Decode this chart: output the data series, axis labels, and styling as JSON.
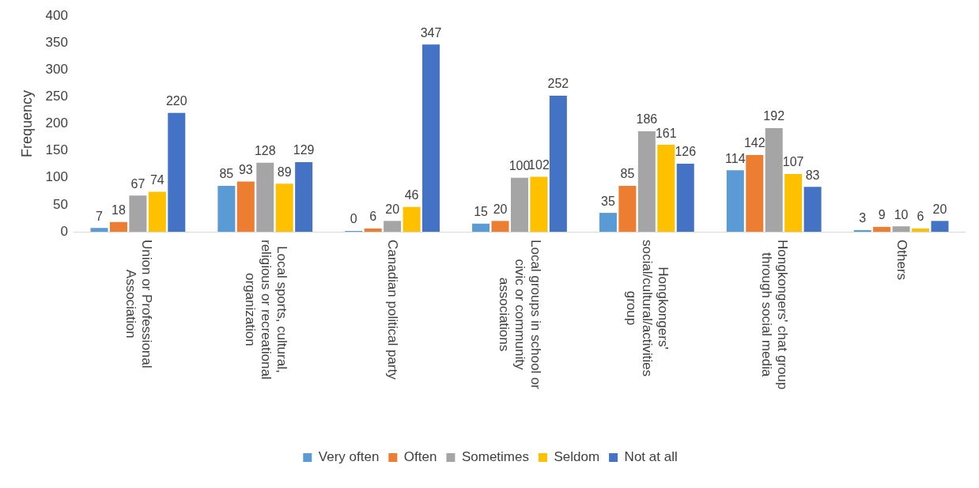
{
  "chart_data": {
    "type": "bar",
    "ylabel": "Frequency",
    "categories": [
      "Union or Professional Association",
      "Local sports, cultural, religious or recreational organization",
      "Canadian political party",
      "Local groups in school or civic or community associations",
      "Hongkongers' social/cultural/activities group",
      "Hongkongers' chat group through social media",
      "Others"
    ],
    "series": [
      {
        "name": "Very often",
        "color": "#5b9bd5",
        "values": [
          7,
          85,
          0,
          15,
          35,
          114,
          3
        ]
      },
      {
        "name": "Often",
        "color": "#ed7d31",
        "values": [
          18,
          93,
          6,
          20,
          85,
          142,
          9
        ]
      },
      {
        "name": "Sometimes",
        "color": "#a5a5a5",
        "values": [
          67,
          128,
          20,
          100,
          186,
          192,
          10
        ]
      },
      {
        "name": "Seldom",
        "color": "#ffc000",
        "values": [
          74,
          89,
          46,
          102,
          161,
          107,
          6
        ]
      },
      {
        "name": "Not at all",
        "color": "#4472c4",
        "values": [
          220,
          129,
          347,
          252,
          126,
          83,
          20
        ]
      }
    ],
    "ylim": [
      0,
      400
    ],
    "yticks": [
      0,
      50,
      100,
      150,
      200,
      250,
      300,
      350,
      400
    ],
    "grid": false,
    "legend": "bottom",
    "data_labels": true
  }
}
